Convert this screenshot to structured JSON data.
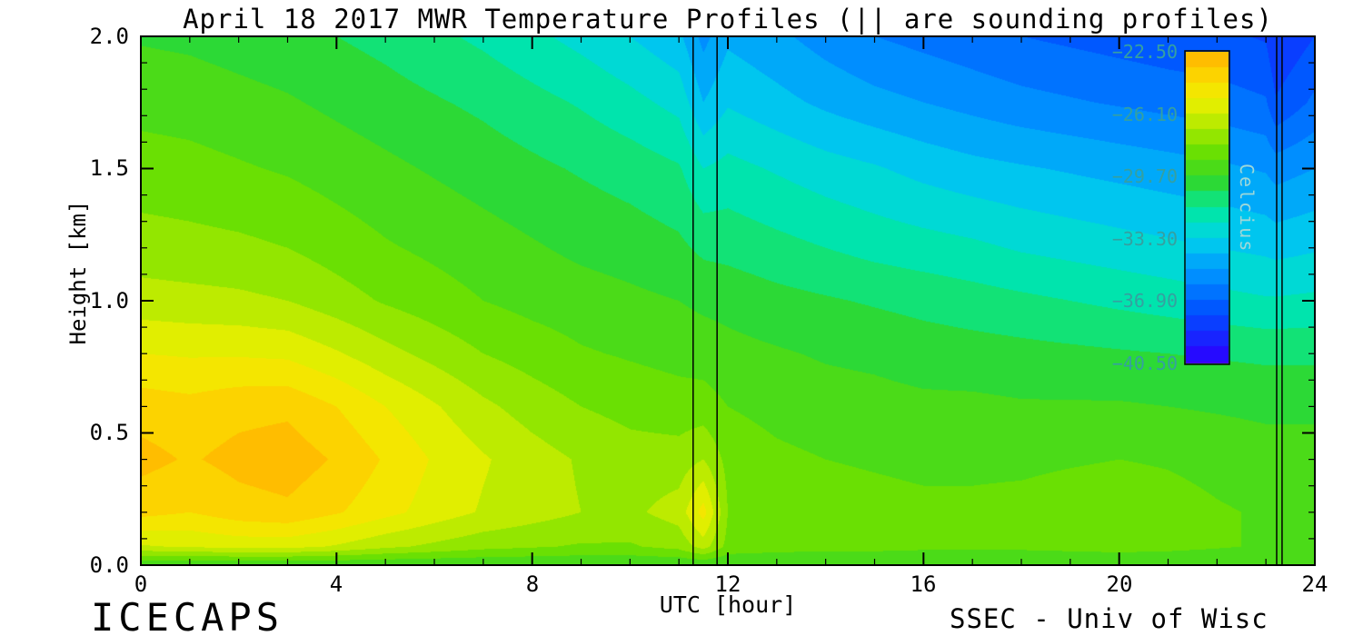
{
  "page": {
    "background": "#ffffff"
  },
  "chart_data": {
    "type": "heatmap",
    "title": "April 18 2017 MWR Temperature Profiles (|| are sounding profiles)",
    "xlabel": "UTC [hour]",
    "ylabel": "Height [km]",
    "footer_left": "ICECAPS",
    "footer_right": "SSEC - Univ of Wisc",
    "axis_color": "#000000",
    "grid": false,
    "legend": "none",
    "xlim": [
      0,
      24
    ],
    "ylim": [
      0,
      2.0
    ],
    "x_major_ticks": [
      0,
      4,
      8,
      12,
      16,
      20,
      24
    ],
    "x_tick_labels": [
      "0",
      "4",
      "8",
      "12",
      "16",
      "20",
      "24"
    ],
    "x_minor_step": 1,
    "y_major_ticks": [
      0,
      0.5,
      1.0,
      1.5,
      2.0
    ],
    "y_tick_labels": [
      "0.0",
      "0.5",
      "1.0",
      "1.5",
      "2.0"
    ],
    "y_minor_step": 0.1,
    "sounding_hours": [
      11.29,
      11.78,
      23.22,
      23.33
    ],
    "x_hours": [
      0,
      1,
      2,
      3,
      4,
      5,
      6,
      7,
      8,
      9,
      10,
      11,
      11.5,
      12,
      13,
      14,
      15,
      16,
      17,
      18,
      19,
      20,
      21,
      22,
      23,
      23.2,
      24
    ],
    "y_km": [
      0,
      0.07,
      0.2,
      0.4,
      0.6,
      0.8,
      1.0,
      1.2,
      1.5,
      1.75,
      2.0
    ],
    "temperature_c": [
      [
        -29.7,
        -29.7,
        -29.7,
        -29.7,
        -29.7,
        -29.7,
        -29.7,
        -29.7,
        -29.7,
        -29.7,
        -29.7,
        -29.7,
        -29.7,
        -29.7,
        -29.7,
        -29.7,
        -29.7,
        -29.7,
        -29.7,
        -29.7,
        -29.7,
        -29.7,
        -29.7,
        -29.7,
        -29.7,
        -29.7,
        -29.7
      ],
      [
        -26.2,
        -26.0,
        -25.8,
        -25.8,
        -26.2,
        -26.8,
        -27.2,
        -27.6,
        -27.8,
        -28.0,
        -28.0,
        -27.6,
        -26.6,
        -28.2,
        -28.4,
        -28.5,
        -28.5,
        -28.6,
        -28.6,
        -28.6,
        -28.5,
        -28.4,
        -28.5,
        -28.7,
        -28.9,
        -28.9,
        -28.9
      ],
      [
        -24.0,
        -24.3,
        -23.8,
        -23.6,
        -24.2,
        -24.9,
        -25.6,
        -26.2,
        -26.6,
        -27.0,
        -27.2,
        -26.6,
        -24.8,
        -27.9,
        -28.2,
        -28.4,
        -28.5,
        -28.6,
        -28.6,
        -28.5,
        -28.3,
        -28.2,
        -28.4,
        -28.7,
        -28.9,
        -28.9,
        -28.9
      ],
      [
        -23.1,
        -23.5,
        -23.1,
        -22.9,
        -23.5,
        -24.4,
        -25.3,
        -26.0,
        -26.6,
        -27.1,
        -27.5,
        -27.5,
        -27.0,
        -28.2,
        -28.6,
        -28.8,
        -28.9,
        -29.0,
        -29.0,
        -29.0,
        -28.9,
        -28.8,
        -28.9,
        -29.1,
        -29.3,
        -29.3,
        -29.3
      ],
      [
        -23.8,
        -24.0,
        -23.7,
        -23.6,
        -24.3,
        -25.2,
        -26.0,
        -26.8,
        -27.4,
        -27.9,
        -28.2,
        -28.4,
        -28.4,
        -28.8,
        -29.1,
        -29.3,
        -29.4,
        -29.5,
        -29.5,
        -29.6,
        -29.6,
        -29.6,
        -29.7,
        -29.8,
        -29.9,
        -29.9,
        -29.9
      ],
      [
        -25.2,
        -25.3,
        -25.3,
        -25.4,
        -26.0,
        -26.7,
        -27.3,
        -27.9,
        -28.3,
        -28.7,
        -28.9,
        -29.1,
        -29.2,
        -29.4,
        -29.6,
        -29.8,
        -29.9,
        -30.1,
        -30.2,
        -30.3,
        -30.4,
        -30.5,
        -30.6,
        -30.7,
        -30.8,
        -30.8,
        -30.8
      ],
      [
        -26.6,
        -26.7,
        -26.8,
        -27.0,
        -27.5,
        -28.0,
        -28.4,
        -28.8,
        -29.1,
        -29.3,
        -29.5,
        -29.7,
        -29.9,
        -30.0,
        -30.3,
        -30.5,
        -30.7,
        -30.9,
        -31.1,
        -31.3,
        -31.5,
        -31.7,
        -31.9,
        -32.1,
        -32.3,
        -32.3,
        -32.2
      ],
      [
        -27.5,
        -27.6,
        -27.7,
        -27.9,
        -28.3,
        -28.7,
        -29.0,
        -29.3,
        -29.6,
        -29.9,
        -30.1,
        -30.4,
        -30.8,
        -30.9,
        -31.2,
        -31.5,
        -31.8,
        -32.0,
        -32.2,
        -32.5,
        -32.7,
        -32.9,
        -33.1,
        -33.3,
        -33.5,
        -33.6,
        -33.4
      ],
      [
        -28.4,
        -28.5,
        -28.7,
        -28.9,
        -29.2,
        -29.5,
        -29.8,
        -30.1,
        -30.4,
        -30.7,
        -31.0,
        -31.4,
        -32.4,
        -32.1,
        -32.5,
        -32.9,
        -33.2,
        -33.6,
        -33.9,
        -34.1,
        -34.3,
        -34.5,
        -34.7,
        -34.9,
        -35.2,
        -35.5,
        -35.1
      ],
      [
        -29.1,
        -29.2,
        -29.4,
        -29.6,
        -29.9,
        -30.2,
        -30.5,
        -30.8,
        -31.2,
        -31.6,
        -32.1,
        -32.7,
        -34.2,
        -33.4,
        -33.9,
        -34.4,
        -34.8,
        -35.1,
        -35.4,
        -35.7,
        -35.9,
        -36.1,
        -36.3,
        -36.5,
        -36.8,
        -37.7,
        -36.7
      ],
      [
        -29.8,
        -29.9,
        -30.1,
        -30.3,
        -30.6,
        -30.9,
        -31.3,
        -31.7,
        -32.2,
        -32.7,
        -33.3,
        -34.0,
        -35.4,
        -34.4,
        -34.9,
        -35.5,
        -36.0,
        -36.3,
        -36.6,
        -36.9,
        -37.1,
        -37.3,
        -37.5,
        -37.6,
        -37.9,
        -38.7,
        -37.8
      ]
    ],
    "color_scale": {
      "min": -42.3,
      "max": -21.0,
      "step": 0.9,
      "stops": [
        [
          0.0,
          122,
          0,
          204
        ],
        [
          0.09,
          43,
          0,
          255
        ],
        [
          0.22,
          0,
          80,
          255
        ],
        [
          0.33,
          0,
          150,
          255
        ],
        [
          0.42,
          0,
          210,
          235
        ],
        [
          0.5,
          0,
          232,
          160
        ],
        [
          0.58,
          50,
          215,
          40
        ],
        [
          0.66,
          110,
          225,
          0
        ],
        [
          0.74,
          190,
          235,
          0
        ],
        [
          0.8,
          240,
          240,
          0
        ],
        [
          0.88,
          255,
          205,
          0
        ],
        [
          0.95,
          255,
          165,
          0
        ],
        [
          1.0,
          255,
          135,
          0
        ]
      ]
    },
    "colorbar": {
      "label": "Celcius",
      "top_value": -22.5,
      "bottom_value": -40.6,
      "tick_labels": [
        "−22.50",
        "−26.10",
        "−29.70",
        "−33.30",
        "−36.90",
        "−40.50"
      ],
      "label_color": "#35a0a0",
      "title_color": "#9fd8d8"
    }
  }
}
